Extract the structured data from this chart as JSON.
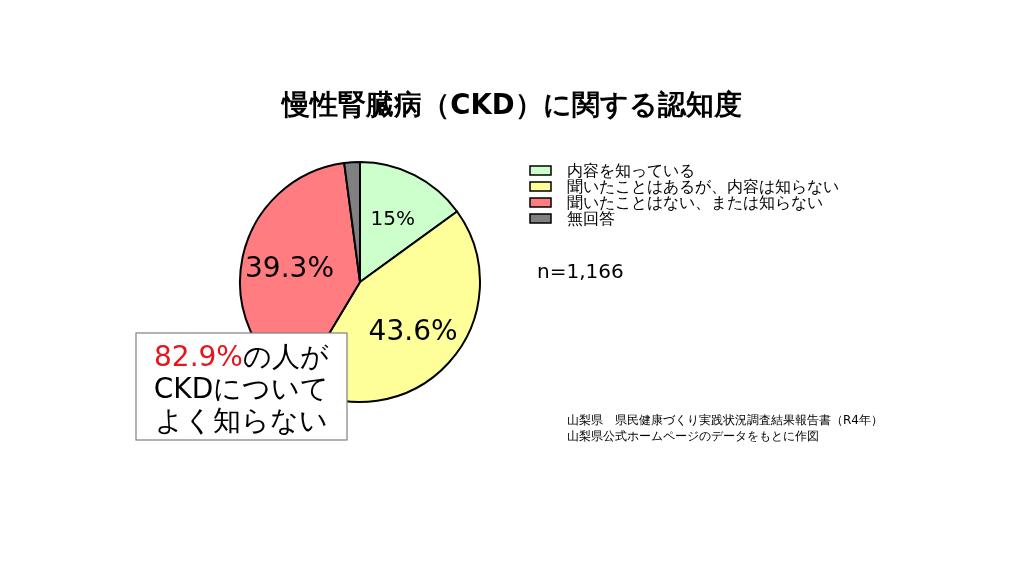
{
  "chart_data": {
    "type": "pie",
    "title": "慢性腎臓病（CKD）に関する認知度",
    "categories": [
      "内容を知っている",
      "聞いたことはあるが、内容は知らない",
      "聞いたことはない、または知らない",
      "無回答"
    ],
    "values": [
      15,
      43.6,
      39.3,
      2.1
    ],
    "colors": [
      "#ccffcc",
      "#ffff99",
      "#ff7c80",
      "#808080"
    ],
    "value_labels": [
      "15%",
      "43.6%",
      "39.3%",
      null
    ],
    "legend": "right",
    "annotations": [
      "82.9%の人がCKDについてよく知らない",
      "n=1,166",
      "山梨県　県民健康づくり実践状況調査結果報告書（R4年）",
      "山梨県公式ホームページのデータをもとに作図"
    ]
  }
}
